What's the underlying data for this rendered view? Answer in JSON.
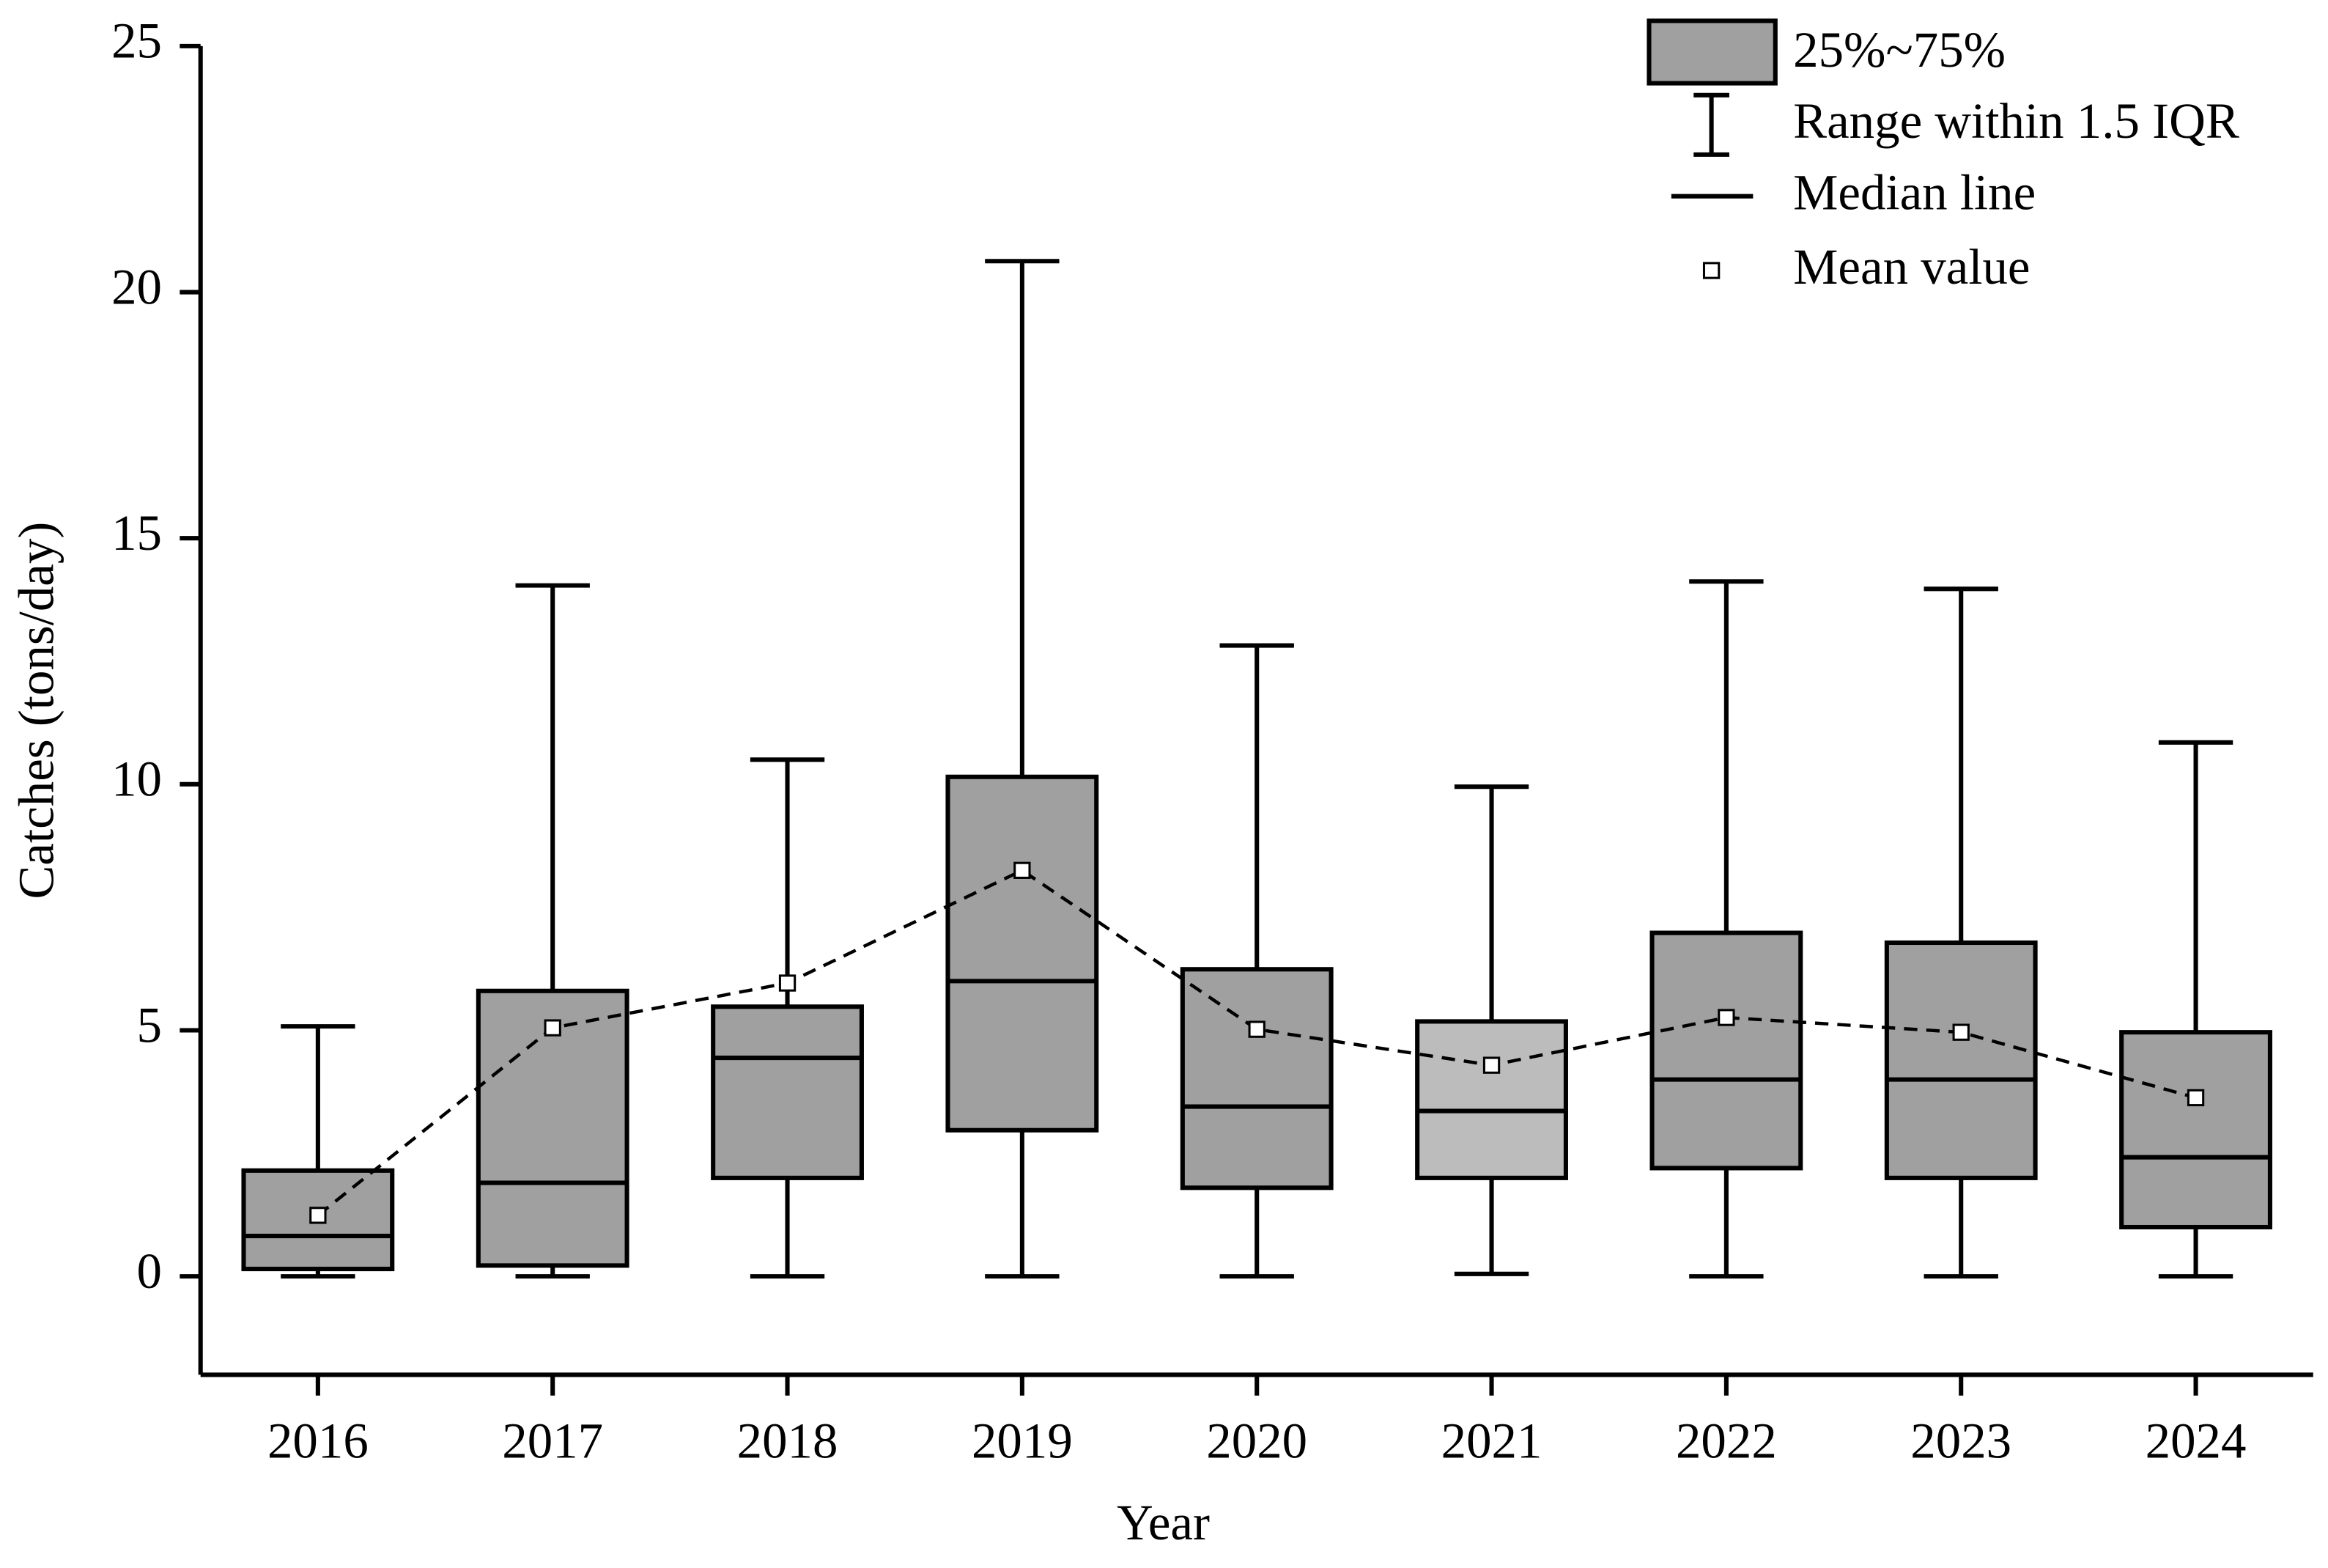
{
  "chart_data": {
    "type": "box",
    "x_label": "Year",
    "y_label": "Catches (tons/day)",
    "categories": [
      "2016",
      "2017",
      "2018",
      "2019",
      "2020",
      "2021",
      "2022",
      "2023",
      "2024"
    ],
    "whisker_low": [
      0,
      0,
      0,
      0,
      0,
      0.05,
      0,
      0,
      0
    ],
    "q1": [
      0.15,
      0.22,
      2.0,
      2.97,
      1.8,
      2.0,
      2.2,
      2.0,
      1.0
    ],
    "median": [
      0.82,
      1.9,
      4.44,
      6.0,
      3.45,
      3.36,
      4.0,
      4.0,
      2.42
    ],
    "q3": [
      2.15,
      5.8,
      5.48,
      10.15,
      6.24,
      5.18,
      6.98,
      6.78,
      4.96
    ],
    "whisker_high": [
      5.08,
      14.04,
      10.5,
      20.63,
      12.82,
      9.95,
      14.12,
      13.97,
      10.85
    ],
    "mean": [
      1.24,
      5.05,
      5.96,
      8.25,
      5.02,
      4.29,
      5.26,
      4.96,
      3.63
    ],
    "box_colors": [
      "#a0a0a0",
      "#a0a0a0",
      "#a0a0a0",
      "#a0a0a0",
      "#a0a0a0",
      "#bcbcbc",
      "#a0a0a0",
      "#a0a0a0",
      "#a0a0a0"
    ],
    "ylim": [
      -2,
      25
    ],
    "yticks": [
      0,
      5,
      10,
      15,
      20,
      25
    ],
    "legend": {
      "box": "25%~75%",
      "whisker": "Range within 1.5 IQR",
      "median": "Median line",
      "mean": "Mean value"
    }
  }
}
